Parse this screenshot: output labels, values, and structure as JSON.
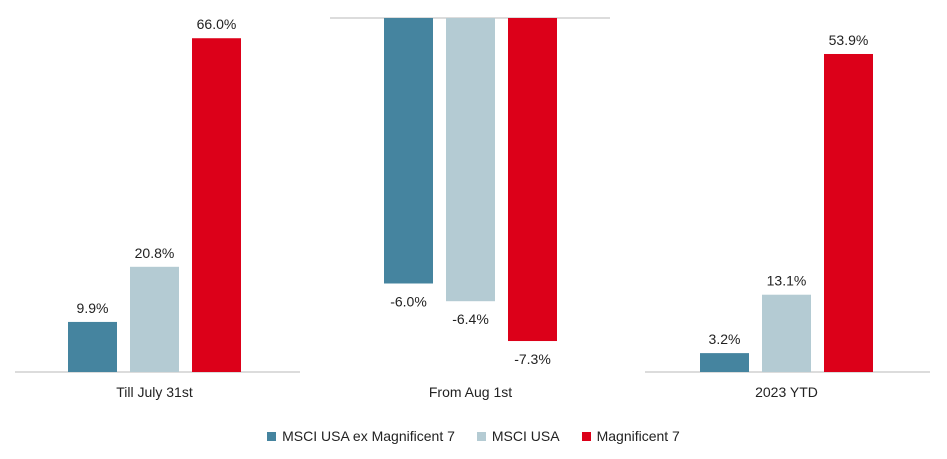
{
  "chart_data": [
    {
      "type": "bar",
      "category": "Till July 31st",
      "ylim": [
        0,
        70
      ],
      "values": [
        9.9,
        20.8,
        66.0
      ],
      "labels": [
        "9.9%",
        "20.8%",
        "66.0%"
      ]
    },
    {
      "type": "bar",
      "category": "From Aug 1st",
      "ylim": [
        -8,
        0
      ],
      "values": [
        -6.0,
        -6.4,
        -7.3
      ],
      "labels": [
        "-6.0%",
        "-6.4%",
        "-7.3%"
      ]
    },
    {
      "type": "bar",
      "category": "2023 YTD",
      "ylim": [
        0,
        60
      ],
      "values": [
        3.2,
        13.1,
        53.9
      ],
      "labels": [
        "3.2%",
        "13.1%",
        "53.9%"
      ]
    }
  ],
  "series": [
    {
      "name": "MSCI USA ex Magnificent 7",
      "color": "#45849f"
    },
    {
      "name": "MSCI USA",
      "color": "#b4cbd3"
    },
    {
      "name": "Magnificent 7",
      "color": "#dc0019"
    }
  ]
}
